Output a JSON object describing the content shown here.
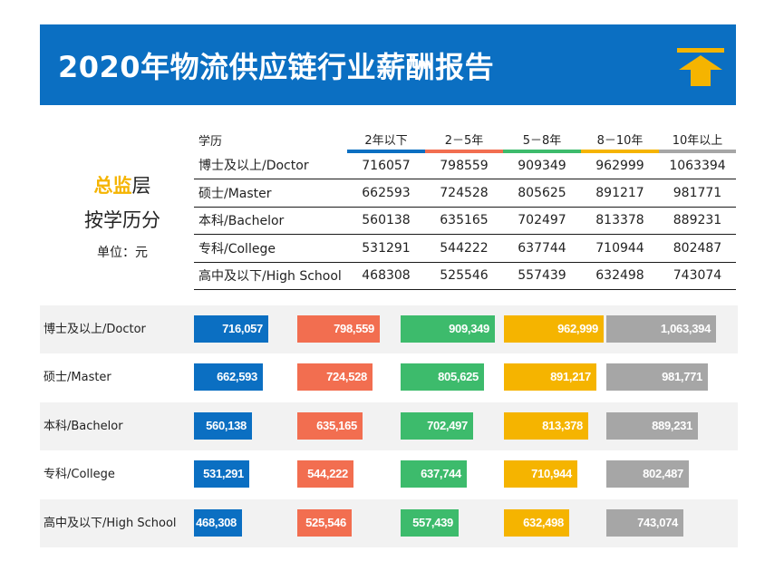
{
  "header": {
    "title": "2020年物流供应链行业薪酬报告",
    "icon": "up-arrow-icon",
    "background_color": "#0b6fc2",
    "icon_color": "#f5b400"
  },
  "side": {
    "level_highlight": "总监",
    "level_suffix": "层",
    "by_education": "按学历分",
    "unit": "单位：元"
  },
  "colors": {
    "series": [
      "#0b6fc2",
      "#f26e50",
      "#3dbb6c",
      "#f5b400",
      "#a6a6a6"
    ],
    "row_shade": "#f2f2f2"
  },
  "chart_data": {
    "type": "bar",
    "row_header": "学历",
    "series_names": [
      "2年以下",
      "2－5年",
      "5－8年",
      "8－10年",
      "10年以上"
    ],
    "categories": [
      "博士及以上/Doctor",
      "硕士/Master",
      "本科/Bachelor",
      "专科/College",
      "高中及以下/High School"
    ],
    "rows": [
      {
        "category": "博士及以上/Doctor",
        "values": [
          716057,
          798559,
          909349,
          962999,
          1063394
        ],
        "labels": [
          "716,057",
          "798,559",
          "909,349",
          "962,999",
          "1,063,394"
        ]
      },
      {
        "category": "硕士/Master",
        "values": [
          662593,
          724528,
          805625,
          891217,
          981771
        ],
        "labels": [
          "662,593",
          "724,528",
          "805,625",
          "891,217",
          "981,771"
        ]
      },
      {
        "category": "本科/Bachelor",
        "values": [
          560138,
          635165,
          702497,
          813378,
          889231
        ],
        "labels": [
          "560,138",
          "635,165",
          "702,497",
          "813,378",
          "889,231"
        ]
      },
      {
        "category": "专科/College",
        "values": [
          531291,
          544222,
          637744,
          710944,
          802487
        ],
        "labels": [
          "531,291",
          "544,222",
          "637,744",
          "710,944",
          "802,487"
        ]
      },
      {
        "category": "高中及以下/High School",
        "values": [
          468308,
          525546,
          557439,
          632498,
          743074
        ],
        "labels": [
          "468,308",
          "525,546",
          "557,439",
          "632,498",
          "743,074"
        ]
      }
    ]
  }
}
